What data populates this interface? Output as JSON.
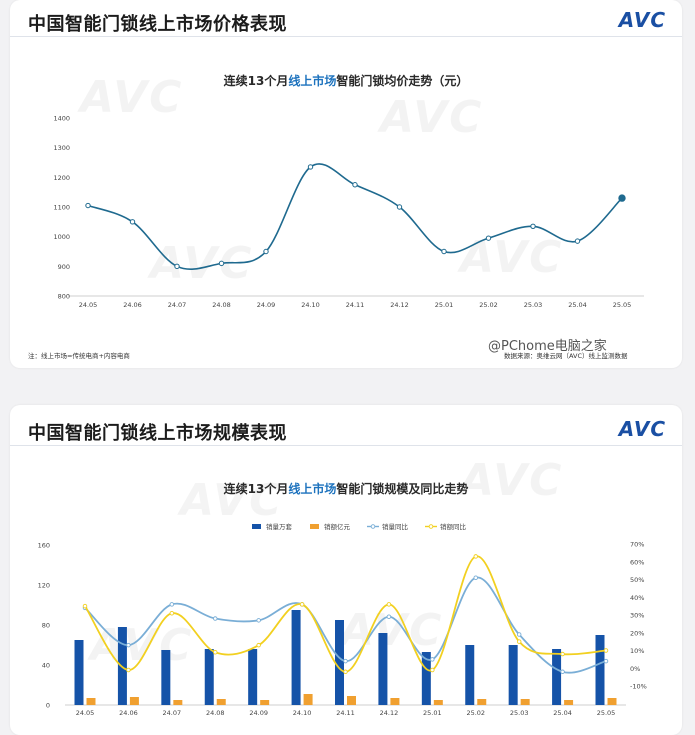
{
  "panel1": {
    "heading": "中国智能门锁线上市场价格表现",
    "logo": "AVC",
    "chart_title_pre": "连续13个月",
    "chart_title_hl": "线上市场",
    "chart_title_post": "智能门锁均价走势（元）",
    "note": "注：线上市场=传统电商+内容电商",
    "source": "数据来源：奥维云网（AVC）线上监测数据"
  },
  "panel2": {
    "heading": "中国智能门锁线上市场规模表现",
    "logo": "AVC",
    "chart_title_pre": "连续13个月",
    "chart_title_hl": "线上市场",
    "chart_title_post": "智能门锁规模及同比走势"
  },
  "watermark_text": "@PChome电脑之家",
  "colors": {
    "price_line": "#1f6a8f",
    "volume_bar": "#1553a8",
    "amount_bar": "#f0a030",
    "volume_yoy": "#7aaed6",
    "amount_yoy": "#f2d020",
    "highlight_blue": "#1e73be"
  },
  "chart_data": [
    {
      "type": "line",
      "categories": [
        "24.05",
        "24.06",
        "24.07",
        "24.08",
        "24.09",
        "24.10",
        "24.11",
        "24.12",
        "25.01",
        "25.02",
        "25.03",
        "25.04",
        "25.05"
      ],
      "series": [
        {
          "name": "",
          "values": [
            1105,
            1050,
            900,
            910,
            950,
            1235,
            1175,
            1100,
            950,
            995,
            1035,
            985,
            1130
          ]
        }
      ],
      "yticks": [
        "1400",
        "1300",
        "1200",
        "1100",
        "1000",
        "900",
        "800"
      ],
      "ylim": [
        800,
        1400
      ],
      "grid": false
    },
    {
      "type": "bar",
      "categories": [
        "24.05",
        "24.06",
        "24.07",
        "24.08",
        "24.09",
        "24.10",
        "24.11",
        "24.12",
        "25.01",
        "25.02",
        "25.03",
        "25.04",
        "25.05"
      ],
      "series": [
        {
          "name": "销量万套",
          "kind": "bar",
          "axis": "left",
          "values": [
            65,
            78,
            55,
            56,
            56,
            95,
            85,
            72,
            53,
            60,
            60,
            56,
            70
          ]
        },
        {
          "name": "销额亿元",
          "kind": "bar",
          "axis": "left",
          "values": [
            7,
            8,
            5,
            6,
            5,
            11,
            9,
            7,
            5,
            6,
            6,
            5,
            7
          ]
        },
        {
          "name": "销量同比",
          "kind": "line",
          "axis": "right",
          "values": [
            34,
            13,
            36,
            28,
            27,
            36,
            4,
            29,
            5,
            51,
            19,
            -2,
            4
          ]
        },
        {
          "name": "销额同比",
          "kind": "line",
          "axis": "right",
          "values": [
            35,
            -1,
            31,
            9,
            13,
            36,
            -2,
            36,
            -1,
            63,
            15,
            8,
            10
          ]
        }
      ],
      "left_ticks": [
        "160",
        "120",
        "80",
        "40",
        "0"
      ],
      "right_ticks": [
        "70%",
        "60%",
        "50%",
        "40%",
        "30%",
        "20%",
        "10%",
        "0%",
        "-10%"
      ],
      "ylim_left": [
        0,
        160
      ],
      "ylim_right": [
        -10,
        70
      ],
      "legend_position": "top-center",
      "grid": false
    }
  ]
}
